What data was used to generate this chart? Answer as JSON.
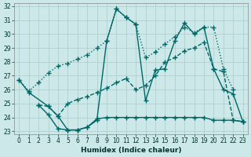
{
  "xlabel": "Humidex (Indice chaleur)",
  "bg_color": "#cce8e8",
  "grid_color": "#aacccc",
  "line_color": "#006666",
  "xlim": [
    -0.5,
    23.5
  ],
  "ylim": [
    22.8,
    32.2
  ],
  "xticks": [
    0,
    1,
    2,
    3,
    4,
    5,
    6,
    7,
    8,
    9,
    10,
    11,
    12,
    13,
    14,
    15,
    16,
    17,
    18,
    19,
    20,
    21,
    22,
    23
  ],
  "yticks": [
    23,
    24,
    25,
    26,
    27,
    28,
    29,
    30,
    31,
    32
  ],
  "lines": [
    {
      "x": [
        0,
        1,
        2,
        3,
        4,
        5,
        6,
        7,
        8,
        9,
        10,
        11,
        12,
        13,
        14,
        15,
        16,
        17,
        18,
        19,
        20,
        21,
        22,
        23
      ],
      "y": [
        26.7,
        25.9,
        26.5,
        27.2,
        27.7,
        27.9,
        28.2,
        28.5,
        29.0,
        29.5,
        31.8,
        31.2,
        30.7,
        28.3,
        28.7,
        29.3,
        29.8,
        30.5,
        30.1,
        30.5,
        30.5,
        27.5,
        26.0,
        null
      ],
      "style": ":",
      "marker": "+",
      "markersize": 4,
      "linewidth": 1.0
    },
    {
      "x": [
        0,
        1,
        3,
        4,
        5,
        6,
        7,
        8,
        9,
        10,
        11,
        12,
        13,
        14,
        15,
        16,
        17,
        18,
        19,
        20,
        21,
        22,
        23
      ],
      "y": [
        26.7,
        25.8,
        24.8,
        24.1,
        23.1,
        23.1,
        23.3,
        23.8,
        29.5,
        31.8,
        31.2,
        30.7,
        25.2,
        27.4,
        27.5,
        29.5,
        30.8,
        30.0,
        30.5,
        27.5,
        26.0,
        25.7,
        23.7
      ],
      "style": "-",
      "marker": "+",
      "markersize": 4,
      "linewidth": 1.0
    },
    {
      "x": [
        2,
        3,
        4,
        5,
        6,
        7,
        8,
        9,
        10,
        11,
        12,
        13,
        14,
        15,
        16,
        17,
        18,
        19,
        20,
        21,
        22,
        23
      ],
      "y": [
        24.9,
        24.8,
        24.1,
        25.0,
        25.3,
        25.5,
        25.8,
        26.1,
        26.5,
        26.8,
        26.0,
        26.3,
        27.0,
        28.0,
        28.3,
        28.8,
        29.0,
        29.4,
        27.5,
        27.3,
        23.8,
        23.7
      ],
      "style": "--",
      "marker": "+",
      "markersize": 4,
      "linewidth": 1.0
    },
    {
      "x": [
        2,
        3,
        4,
        5,
        6,
        7,
        8,
        9,
        10,
        11,
        12,
        13,
        14,
        15,
        16,
        17,
        18,
        19,
        20,
        21,
        22,
        23
      ],
      "y": [
        24.9,
        24.2,
        23.2,
        23.1,
        23.1,
        23.3,
        23.9,
        24.0,
        24.0,
        24.0,
        24.0,
        24.0,
        24.0,
        24.0,
        24.0,
        24.0,
        24.0,
        24.0,
        23.8,
        23.8,
        23.8,
        23.7
      ],
      "style": "-",
      "marker": "+",
      "markersize": 4,
      "linewidth": 1.0
    }
  ]
}
